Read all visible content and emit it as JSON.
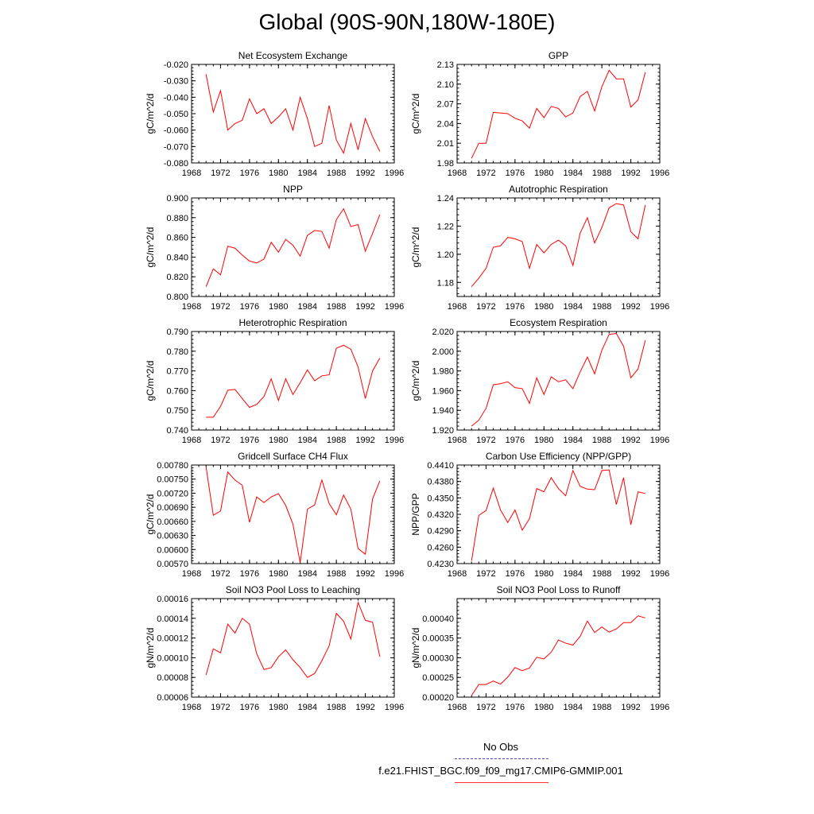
{
  "title": "Global (90S-90N,180W-180E)",
  "legend": {
    "obs_label": "No Obs",
    "run_label": "f.e21.FHIST_BGC.f09_f09_mg17.CMIP6-GMMIP.001",
    "obs_color": "#4a4acc",
    "run_color": "#ff0000"
  },
  "line_color": "#ff0000",
  "chart_data": [
    {
      "type": "line",
      "title": "Net Ecosystem Exchange",
      "ylabel": "gC/m^2/d",
      "xlim": [
        1968,
        1996
      ],
      "xticks": [
        "1968",
        "1972",
        "1976",
        "1980",
        "1984",
        "1988",
        "1992",
        "1996"
      ],
      "ylim": [
        -0.08,
        -0.02
      ],
      "ytick_values": [
        -0.08,
        -0.07,
        -0.06,
        -0.05,
        -0.04,
        -0.03,
        -0.02
      ],
      "yticks": [
        "-0.080",
        "-0.070",
        "-0.060",
        "-0.050",
        "-0.040",
        "-0.030",
        "-0.020"
      ],
      "x": [
        1970,
        1971,
        1972,
        1973,
        1974,
        1975,
        1976,
        1977,
        1978,
        1979,
        1980,
        1981,
        1982,
        1983,
        1984,
        1985,
        1986,
        1987,
        1988,
        1989,
        1990,
        1991,
        1992,
        1993,
        1994
      ],
      "values": [
        -0.026,
        -0.049,
        -0.036,
        -0.06,
        -0.056,
        -0.054,
        -0.041,
        -0.05,
        -0.047,
        -0.056,
        -0.052,
        -0.047,
        -0.06,
        -0.04,
        -0.053,
        -0.07,
        -0.068,
        -0.045,
        -0.066,
        -0.074,
        -0.056,
        -0.072,
        -0.053,
        -0.064,
        -0.073
      ]
    },
    {
      "type": "line",
      "title": "GPP",
      "ylabel": "gC/m^2/d",
      "xlim": [
        1968,
        1996
      ],
      "xticks": [
        "1968",
        "1972",
        "1976",
        "1980",
        "1984",
        "1988",
        "1992",
        "1996"
      ],
      "ylim": [
        1.98,
        2.13
      ],
      "ytick_values": [
        1.98,
        2.01,
        2.04,
        2.07,
        2.1,
        2.13
      ],
      "yticks": [
        "1.98",
        "2.01",
        "2.04",
        "2.07",
        "2.10",
        "2.13"
      ],
      "x": [
        1970,
        1971,
        1972,
        1973,
        1974,
        1975,
        1976,
        1977,
        1978,
        1979,
        1980,
        1981,
        1982,
        1983,
        1984,
        1985,
        1986,
        1987,
        1988,
        1989,
        1990,
        1991,
        1992,
        1993,
        1994
      ],
      "values": [
        1.987,
        2.01,
        2.01,
        2.057,
        2.056,
        2.055,
        2.048,
        2.044,
        2.033,
        2.063,
        2.049,
        2.066,
        2.063,
        2.05,
        2.056,
        2.081,
        2.089,
        2.059,
        2.096,
        2.121,
        2.108,
        2.108,
        2.065,
        2.076,
        2.118
      ]
    },
    {
      "type": "line",
      "title": "NPP",
      "ylabel": "gC/m^2/d",
      "xlim": [
        1968,
        1996
      ],
      "xticks": [
        "1968",
        "1972",
        "1976",
        "1980",
        "1984",
        "1988",
        "1992",
        "1996"
      ],
      "ylim": [
        0.8,
        0.9
      ],
      "ytick_values": [
        0.8,
        0.82,
        0.84,
        0.86,
        0.88,
        0.9
      ],
      "yticks": [
        "0.800",
        "0.820",
        "0.840",
        "0.860",
        "0.880",
        "0.900"
      ],
      "x": [
        1970,
        1971,
        1972,
        1973,
        1974,
        1975,
        1976,
        1977,
        1978,
        1979,
        1980,
        1981,
        1982,
        1983,
        1984,
        1985,
        1986,
        1987,
        1988,
        1989,
        1990,
        1991,
        1992,
        1993,
        1994
      ],
      "values": [
        0.81,
        0.828,
        0.822,
        0.851,
        0.849,
        0.842,
        0.836,
        0.834,
        0.838,
        0.855,
        0.845,
        0.858,
        0.852,
        0.841,
        0.862,
        0.867,
        0.866,
        0.849,
        0.878,
        0.889,
        0.871,
        0.873,
        0.846,
        0.864,
        0.883
      ]
    },
    {
      "type": "line",
      "title": "Autotrophic Respiration",
      "ylabel": "gC/m^2/d",
      "xlim": [
        1968,
        1996
      ],
      "xticks": [
        "1968",
        "1972",
        "1976",
        "1980",
        "1984",
        "1988",
        "1992",
        "1996"
      ],
      "ylim": [
        1.17,
        1.24
      ],
      "ytick_values": [
        1.18,
        1.2,
        1.22,
        1.24
      ],
      "yticks": [
        "1.18",
        "1.20",
        "1.22",
        "1.24"
      ],
      "x": [
        1970,
        1971,
        1972,
        1973,
        1974,
        1975,
        1976,
        1977,
        1978,
        1979,
        1980,
        1981,
        1982,
        1983,
        1984,
        1985,
        1986,
        1987,
        1988,
        1989,
        1990,
        1991,
        1992,
        1993,
        1994
      ],
      "values": [
        1.177,
        1.183,
        1.19,
        1.205,
        1.206,
        1.212,
        1.211,
        1.209,
        1.19,
        1.207,
        1.201,
        1.207,
        1.21,
        1.206,
        1.192,
        1.215,
        1.226,
        1.208,
        1.219,
        1.233,
        1.236,
        1.235,
        1.216,
        1.211,
        1.235
      ]
    },
    {
      "type": "line",
      "title": "Heterotrophic Respiration",
      "ylabel": "gC/m^2/d",
      "xlim": [
        1968,
        1996
      ],
      "xticks": [
        "1968",
        "1972",
        "1976",
        "1980",
        "1984",
        "1988",
        "1992",
        "1996"
      ],
      "ylim": [
        0.74,
        0.79
      ],
      "ytick_values": [
        0.74,
        0.75,
        0.76,
        0.77,
        0.78,
        0.79
      ],
      "yticks": [
        "0.740",
        "0.750",
        "0.760",
        "0.770",
        "0.780",
        "0.790"
      ],
      "x": [
        1970,
        1971,
        1972,
        1973,
        1974,
        1975,
        1976,
        1977,
        1978,
        1979,
        1980,
        1981,
        1982,
        1983,
        1984,
        1985,
        1986,
        1987,
        1988,
        1989,
        1990,
        1991,
        1992,
        1993,
        1994
      ],
      "values": [
        0.7465,
        0.7465,
        0.752,
        0.7602,
        0.7606,
        0.756,
        0.7515,
        0.753,
        0.757,
        0.766,
        0.755,
        0.766,
        0.758,
        0.764,
        0.7705,
        0.765,
        0.7675,
        0.768,
        0.7815,
        0.783,
        0.781,
        0.772,
        0.756,
        0.77,
        0.7765
      ]
    },
    {
      "type": "line",
      "title": "Ecosystem Respiration",
      "ylabel": "gC/m^2/d",
      "xlim": [
        1968,
        1996
      ],
      "xticks": [
        "1968",
        "1972",
        "1976",
        "1980",
        "1984",
        "1988",
        "1992",
        "1996"
      ],
      "ylim": [
        1.92,
        2.02
      ],
      "ytick_values": [
        1.92,
        1.94,
        1.96,
        1.98,
        2.0,
        2.02
      ],
      "yticks": [
        "1.920",
        "1.940",
        "1.960",
        "1.980",
        "2.000",
        "2.020"
      ],
      "x": [
        1970,
        1971,
        1972,
        1973,
        1974,
        1975,
        1976,
        1977,
        1978,
        1979,
        1980,
        1981,
        1982,
        1983,
        1984,
        1985,
        1986,
        1987,
        1988,
        1989,
        1990,
        1991,
        1992,
        1993,
        1994
      ],
      "values": [
        1.924,
        1.93,
        1.942,
        1.966,
        1.967,
        1.969,
        1.963,
        1.962,
        1.947,
        1.973,
        1.956,
        1.974,
        1.969,
        1.971,
        1.962,
        1.979,
        1.994,
        1.977,
        2.001,
        2.017,
        2.018,
        2.005,
        1.973,
        1.982,
        2.011
      ]
    },
    {
      "type": "line",
      "title": "Gridcell Surface CH4 Flux",
      "ylabel": "gC/m^2/d",
      "xlim": [
        1968,
        1996
      ],
      "xticks": [
        "1968",
        "1972",
        "1976",
        "1980",
        "1984",
        "1988",
        "1992",
        "1996"
      ],
      "ylim": [
        0.0057,
        0.0078
      ],
      "ytick_values": [
        0.0057,
        0.006,
        0.0063,
        0.0066,
        0.0069,
        0.0072,
        0.0075,
        0.0078
      ],
      "yticks": [
        "0.00570",
        "0.00600",
        "0.00630",
        "0.00660",
        "0.00690",
        "0.00720",
        "0.00750",
        "0.00780"
      ],
      "x": [
        1970,
        1971,
        1972,
        1973,
        1974,
        1975,
        1976,
        1977,
        1978,
        1979,
        1980,
        1981,
        1982,
        1983,
        1984,
        1985,
        1986,
        1987,
        1988,
        1989,
        1990,
        1991,
        1992,
        1993,
        1994
      ],
      "values": [
        0.00776,
        0.00673,
        0.00682,
        0.00765,
        0.00748,
        0.00737,
        0.00658,
        0.00712,
        0.007,
        0.00712,
        0.00719,
        0.00694,
        0.00654,
        0.00572,
        0.00686,
        0.00695,
        0.00748,
        0.00698,
        0.00674,
        0.00716,
        0.00686,
        0.00602,
        0.0059,
        0.00708,
        0.00746
      ]
    },
    {
      "type": "line",
      "title": "Carbon Use Efficiency (NPP/GPP)",
      "ylabel": "NPP/GPP",
      "xlim": [
        1968,
        1996
      ],
      "xticks": [
        "1968",
        "1972",
        "1976",
        "1980",
        "1984",
        "1988",
        "1992",
        "1996"
      ],
      "ylim": [
        0.423,
        0.441
      ],
      "ytick_values": [
        0.423,
        0.426,
        0.429,
        0.432,
        0.435,
        0.438,
        0.441
      ],
      "yticks": [
        "0.4230",
        "0.4260",
        "0.4290",
        "0.4320",
        "0.4350",
        "0.4380",
        "0.4410"
      ],
      "x": [
        1970,
        1971,
        1972,
        1973,
        1974,
        1975,
        1976,
        1977,
        1978,
        1979,
        1980,
        1981,
        1982,
        1983,
        1984,
        1985,
        1986,
        1987,
        1988,
        1989,
        1990,
        1991,
        1992,
        1993,
        1994
      ],
      "values": [
        0.4235,
        0.4318,
        0.4327,
        0.4368,
        0.4328,
        0.4305,
        0.4328,
        0.4291,
        0.4312,
        0.4367,
        0.4361,
        0.4387,
        0.4367,
        0.4354,
        0.44,
        0.4371,
        0.4366,
        0.4365,
        0.44,
        0.4401,
        0.4338,
        0.4387,
        0.4301,
        0.4361,
        0.4358
      ]
    },
    {
      "type": "line",
      "title": "Soil NO3 Pool Loss to Leaching",
      "ylabel": "gN/m^2/d",
      "xlim": [
        1968,
        1996
      ],
      "xticks": [
        "1968",
        "1972",
        "1976",
        "1980",
        "1984",
        "1988",
        "1992",
        "1996"
      ],
      "ylim": [
        6e-05,
        0.00016
      ],
      "ytick_values": [
        6e-05,
        8e-05,
        0.0001,
        0.00012,
        0.00014,
        0.00016
      ],
      "yticks": [
        "0.00006",
        "0.00008",
        "0.00010",
        "0.00012",
        "0.00014",
        "0.00016"
      ],
      "x": [
        1970,
        1971,
        1972,
        1973,
        1974,
        1975,
        1976,
        1977,
        1978,
        1979,
        1980,
        1981,
        1982,
        1983,
        1984,
        1985,
        1986,
        1987,
        1988,
        1989,
        1990,
        1991,
        1992,
        1993,
        1994
      ],
      "values": [
        8.25e-05,
        0.000109,
        0.000105,
        0.000134,
        0.000125,
        0.00014,
        0.000134,
        0.000104,
        8.8e-05,
        9e-05,
        0.000101,
        0.000108,
        9.8e-05,
        9e-05,
        8e-05,
        8.4e-05,
        9.7e-05,
        0.000112,
        0.000145,
        0.000137,
        0.000119,
        0.000156,
        0.000138,
        0.000136,
        0.000101
      ]
    },
    {
      "type": "line",
      "title": "Soil NO3 Pool Loss to Runoff",
      "ylabel": "gN/m^2/d",
      "xlim": [
        1968,
        1996
      ],
      "xticks": [
        "1968",
        "1972",
        "1976",
        "1980",
        "1984",
        "1988",
        "1992",
        "1996"
      ],
      "ylim": [
        0.0002,
        0.00045
      ],
      "ytick_values": [
        0.0002,
        0.00025,
        0.0003,
        0.00035,
        0.0004
      ],
      "yticks": [
        "0.00020",
        "0.00025",
        "0.00030",
        "0.00035",
        "0.00040"
      ],
      "x": [
        1970,
        1971,
        1972,
        1973,
        1974,
        1975,
        1976,
        1977,
        1978,
        1979,
        1980,
        1981,
        1982,
        1983,
        1984,
        1985,
        1986,
        1987,
        1988,
        1989,
        1990,
        1991,
        1992,
        1993,
        1994
      ],
      "values": [
        0.000204,
        0.000232,
        0.000232,
        0.000241,
        0.000233,
        0.000251,
        0.000275,
        0.000267,
        0.000274,
        0.000301,
        0.000297,
        0.000314,
        0.000345,
        0.000337,
        0.000332,
        0.000354,
        0.000393,
        0.000364,
        0.000378,
        0.000365,
        0.000373,
        0.000389,
        0.000389,
        0.000406,
        0.000401
      ]
    }
  ]
}
